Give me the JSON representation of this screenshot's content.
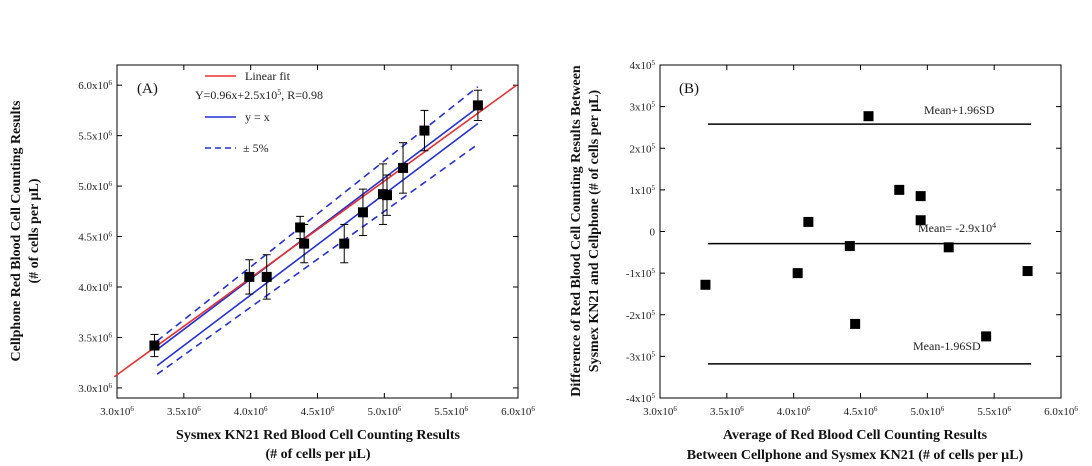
{
  "chart_data": [
    {
      "type": "scatter",
      "panel_label": "(A)",
      "xlabel": "Sysmex KN21 Red Blood Cell Counting Results",
      "xlabel_unit": "(# of cells per µL)",
      "ylabel": "Cellphone Red Blood Cell Counting Results",
      "ylabel_unit": "(# of cells per µL)",
      "xlim": [
        3000000,
        6000000
      ],
      "ylim": [
        2900000,
        6200000
      ],
      "xticks": [
        3000000,
        3500000,
        4000000,
        4500000,
        5000000,
        5500000,
        6000000
      ],
      "yticks": [
        3000000,
        3500000,
        4000000,
        4500000,
        5000000,
        5500000,
        6000000
      ],
      "xtick_labels": [
        {
          "mant": "3.0x10",
          "exp": "6"
        },
        {
          "mant": "3.5x10",
          "exp": "6"
        },
        {
          "mant": "4.0x10",
          "exp": "6"
        },
        {
          "mant": "4.5x10",
          "exp": "6"
        },
        {
          "mant": "5.0x10",
          "exp": "6"
        },
        {
          "mant": "5.5x10",
          "exp": "6"
        },
        {
          "mant": "6.0x10",
          "exp": "6"
        }
      ],
      "ytick_labels": [
        {
          "mant": "3.0x10",
          "exp": "6"
        },
        {
          "mant": "3.5x10",
          "exp": "6"
        },
        {
          "mant": "4.0x10",
          "exp": "6"
        },
        {
          "mant": "4.5x10",
          "exp": "6"
        },
        {
          "mant": "5.0x10",
          "exp": "6"
        },
        {
          "mant": "5.5x10",
          "exp": "6"
        },
        {
          "mant": "6.0x10",
          "exp": "6"
        }
      ],
      "points": [
        {
          "x": 3280000,
          "y": 3420000,
          "err": 110000
        },
        {
          "x": 3990000,
          "y": 4100000,
          "err": 170000
        },
        {
          "x": 4120000,
          "y": 4100000,
          "err": 220000
        },
        {
          "x": 4370000,
          "y": 4590000,
          "err": 110000
        },
        {
          "x": 4400000,
          "y": 4430000,
          "err": 190000
        },
        {
          "x": 4700000,
          "y": 4430000,
          "err": 190000
        },
        {
          "x": 4840000,
          "y": 4740000,
          "err": 230000
        },
        {
          "x": 4990000,
          "y": 4920000,
          "err": 300000
        },
        {
          "x": 5020000,
          "y": 4910000,
          "err": 200000
        },
        {
          "x": 5140000,
          "y": 5180000,
          "err": 250000
        },
        {
          "x": 5300000,
          "y": 5550000,
          "err": 200000
        },
        {
          "x": 5700000,
          "y": 5800000,
          "err": 150000
        }
      ],
      "lines": [
        {
          "name": "Linear fit",
          "kind": "linear-fit",
          "color": "#e8312f",
          "slope": 0.96,
          "intercept": 250000,
          "x_range": [
            2980000,
            5990000
          ]
        },
        {
          "name": "y = x",
          "kind": "identity-band",
          "color": "#2430d6",
          "x_range": [
            3300000,
            5700000
          ]
        },
        {
          "name": "± 5%",
          "kind": "tolerance",
          "color": "#2430d6",
          "dashed": true,
          "factors": [
            1.05,
            0.95
          ],
          "x_range": [
            3300000,
            5700000
          ]
        }
      ],
      "legend": {
        "placement": "top-left",
        "fit_equation": {
          "pre": "Y=0.96x+2.5x10",
          "exp": "5",
          "post": ", R=0.98"
        }
      }
    },
    {
      "type": "scatter",
      "panel_label": "(B)",
      "xlabel": "Average of  Red Blood Cell Counting Results",
      "xlabel_line2": "Between Cellphone and Sysmex KN21  (# of cells per µL)",
      "ylabel": "Difference of  Red Blood Cell Counting Results Between",
      "ylabel_line2": "Sysmex KN21 and Cellphone (# of cells per µL)",
      "xlim": [
        3000000,
        6000000
      ],
      "ylim": [
        -400000,
        400000
      ],
      "xticks": [
        3000000,
        3500000,
        4000000,
        4500000,
        5000000,
        5500000,
        6000000
      ],
      "yticks": [
        -400000,
        -300000,
        -200000,
        -100000,
        0,
        100000,
        200000,
        300000,
        400000
      ],
      "xtick_labels": [
        {
          "mant": "3.0x10",
          "exp": "6"
        },
        {
          "mant": "3.5x10",
          "exp": "6"
        },
        {
          "mant": "4.0x10",
          "exp": "6"
        },
        {
          "mant": "4.5x10",
          "exp": "6"
        },
        {
          "mant": "5.0x10",
          "exp": "6"
        },
        {
          "mant": "5.5x10",
          "exp": "6"
        },
        {
          "mant": "6.0x10",
          "exp": "6"
        }
      ],
      "ytick_labels": [
        {
          "mant": "-4x10",
          "exp": "5"
        },
        {
          "mant": "-3x10",
          "exp": "5"
        },
        {
          "mant": "-2x10",
          "exp": "5"
        },
        {
          "mant": "-1x10",
          "exp": "5"
        },
        {
          "mant": "0",
          "exp": ""
        },
        {
          "mant": "1x10",
          "exp": "5"
        },
        {
          "mant": "2x10",
          "exp": "5"
        },
        {
          "mant": "3x10",
          "exp": "5"
        },
        {
          "mant": "4x10",
          "exp": "5"
        }
      ],
      "points": [
        {
          "x": 3340000,
          "y": -128000
        },
        {
          "x": 4030000,
          "y": -100000
        },
        {
          "x": 4110000,
          "y": 23000
        },
        {
          "x": 4420000,
          "y": -35000
        },
        {
          "x": 4460000,
          "y": -222000
        },
        {
          "x": 4560000,
          "y": 277000
        },
        {
          "x": 4790000,
          "y": 100000
        },
        {
          "x": 4950000,
          "y": 85000
        },
        {
          "x": 4950000,
          "y": 27000
        },
        {
          "x": 5160000,
          "y": -38000
        },
        {
          "x": 5440000,
          "y": -252000
        },
        {
          "x": 5750000,
          "y": -95000
        }
      ],
      "reference_lines": [
        {
          "y": 258000,
          "label": "Mean+1.96SD"
        },
        {
          "y": -29000,
          "label_pre": "Mean= -2.9x10",
          "label_exp": "4"
        },
        {
          "y": -318000,
          "label": "Mean-1.96SD"
        }
      ]
    }
  ]
}
